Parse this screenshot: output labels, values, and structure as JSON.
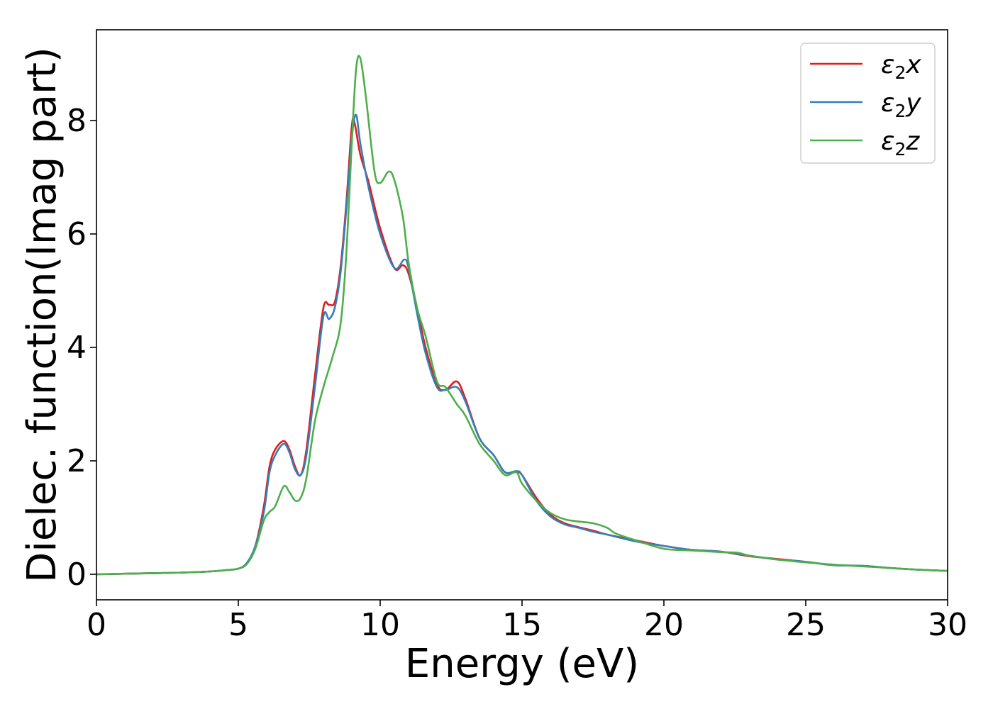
{
  "chart_data": {
    "type": "line",
    "title": "",
    "xlabel": "Energy (eV)",
    "ylabel": "Dielec. function(Imag part)",
    "xlim": [
      0,
      30
    ],
    "ylim": [
      -0.45,
      9.6
    ],
    "xticks": [
      0,
      5,
      10,
      15,
      20,
      25,
      30
    ],
    "yticks": [
      0,
      2,
      4,
      6,
      8
    ],
    "xtick_labels": [
      "0",
      "5",
      "10",
      "15",
      "20",
      "25",
      "30"
    ],
    "ytick_labels": [
      "0",
      "2",
      "4",
      "6",
      "8"
    ],
    "grid": false,
    "legend_position": "top-right",
    "series": [
      {
        "name": "ε2x",
        "legend_symbol": "ε",
        "legend_sub": "2",
        "legend_var": "x",
        "color": "#e41a1c",
        "x": [
          0,
          1,
          2,
          3,
          4,
          4.5,
          5,
          5.3,
          5.6,
          5.9,
          6.1,
          6.3,
          6.6,
          6.8,
          7.0,
          7.2,
          7.4,
          7.7,
          8.0,
          8.2,
          8.4,
          8.6,
          8.8,
          9.0,
          9.1,
          9.3,
          9.6,
          10.0,
          10.5,
          10.8,
          11.0,
          11.3,
          11.6,
          12.0,
          12.3,
          12.7,
          13.0,
          13.5,
          14.0,
          14.4,
          14.8,
          15.0,
          15.5,
          16.0,
          16.5,
          17.0,
          17.5,
          18.0,
          19.0,
          20.0,
          21.0,
          22.0,
          23.0,
          24.0,
          25.0,
          26.0,
          27.0,
          28.0,
          29.0,
          30.0
        ],
        "y": [
          0.0,
          0.01,
          0.02,
          0.03,
          0.05,
          0.07,
          0.1,
          0.2,
          0.5,
          1.2,
          1.9,
          2.2,
          2.35,
          2.2,
          1.9,
          1.75,
          2.2,
          3.5,
          4.7,
          4.75,
          4.8,
          5.4,
          6.5,
          7.9,
          7.95,
          7.4,
          6.9,
          6.1,
          5.4,
          5.45,
          5.3,
          4.7,
          4.0,
          3.35,
          3.25,
          3.4,
          3.1,
          2.4,
          2.1,
          1.8,
          1.8,
          1.75,
          1.35,
          1.05,
          0.9,
          0.83,
          0.77,
          0.7,
          0.6,
          0.5,
          0.43,
          0.4,
          0.32,
          0.27,
          0.22,
          0.16,
          0.15,
          0.11,
          0.08,
          0.06
        ]
      },
      {
        "name": "ε2y",
        "legend_symbol": "ε",
        "legend_sub": "2",
        "legend_var": "y",
        "color": "#377eb8",
        "x": [
          0,
          1,
          2,
          3,
          4,
          4.5,
          5,
          5.3,
          5.6,
          5.9,
          6.1,
          6.3,
          6.6,
          6.8,
          7.0,
          7.2,
          7.4,
          7.7,
          8.0,
          8.2,
          8.4,
          8.6,
          8.8,
          9.0,
          9.15,
          9.3,
          9.6,
          10.0,
          10.5,
          10.85,
          11.0,
          11.3,
          11.6,
          12.0,
          12.3,
          12.7,
          13.0,
          13.5,
          14.0,
          14.4,
          14.8,
          15.0,
          15.5,
          16.0,
          16.5,
          17.0,
          17.5,
          18.0,
          19.0,
          20.0,
          21.0,
          22.0,
          23.0,
          24.0,
          25.0,
          26.0,
          27.0,
          28.0,
          29.0,
          30.0
        ],
        "y": [
          0.0,
          0.01,
          0.02,
          0.03,
          0.05,
          0.07,
          0.1,
          0.2,
          0.5,
          1.1,
          1.8,
          2.1,
          2.3,
          2.15,
          1.85,
          1.75,
          2.1,
          3.3,
          4.55,
          4.5,
          4.7,
          5.3,
          6.4,
          7.7,
          8.1,
          7.6,
          6.8,
          6.0,
          5.4,
          5.55,
          5.4,
          4.6,
          3.9,
          3.3,
          3.25,
          3.3,
          3.05,
          2.4,
          2.1,
          1.8,
          1.82,
          1.75,
          1.3,
          1.02,
          0.88,
          0.82,
          0.75,
          0.7,
          0.58,
          0.5,
          0.43,
          0.4,
          0.33,
          0.26,
          0.22,
          0.16,
          0.15,
          0.11,
          0.08,
          0.06
        ]
      },
      {
        "name": "ε2z",
        "legend_symbol": "ε",
        "legend_sub": "2",
        "legend_var": "z",
        "color": "#4daf4a",
        "x": [
          0,
          1,
          2,
          3,
          4,
          4.5,
          5,
          5.3,
          5.6,
          5.9,
          6.1,
          6.3,
          6.6,
          6.8,
          7.0,
          7.2,
          7.4,
          7.7,
          8.0,
          8.3,
          8.6,
          8.8,
          9.0,
          9.15,
          9.3,
          9.5,
          9.8,
          10.0,
          10.3,
          10.5,
          10.8,
          11.0,
          11.3,
          11.6,
          12.0,
          12.3,
          12.7,
          13.0,
          13.5,
          14.0,
          14.4,
          14.8,
          15.0,
          15.5,
          16.0,
          16.5,
          17.0,
          17.5,
          18.0,
          18.3,
          19.0,
          20.0,
          21.0,
          22.0,
          22.6,
          23.0,
          24.0,
          25.0,
          26.0,
          27.0,
          28.0,
          29.0,
          30.0
        ],
        "y": [
          0.0,
          0.01,
          0.02,
          0.03,
          0.05,
          0.07,
          0.1,
          0.18,
          0.45,
          0.95,
          1.1,
          1.2,
          1.55,
          1.45,
          1.3,
          1.35,
          1.7,
          2.7,
          3.3,
          3.8,
          4.4,
          5.6,
          7.6,
          8.9,
          9.1,
          8.4,
          7.1,
          6.9,
          7.1,
          6.95,
          6.3,
          5.5,
          4.7,
          4.2,
          3.4,
          3.3,
          3.0,
          2.8,
          2.3,
          2.0,
          1.75,
          1.8,
          1.6,
          1.3,
          1.08,
          0.97,
          0.93,
          0.9,
          0.82,
          0.72,
          0.6,
          0.45,
          0.42,
          0.39,
          0.38,
          0.33,
          0.26,
          0.21,
          0.17,
          0.14,
          0.11,
          0.08,
          0.06
        ]
      }
    ]
  }
}
